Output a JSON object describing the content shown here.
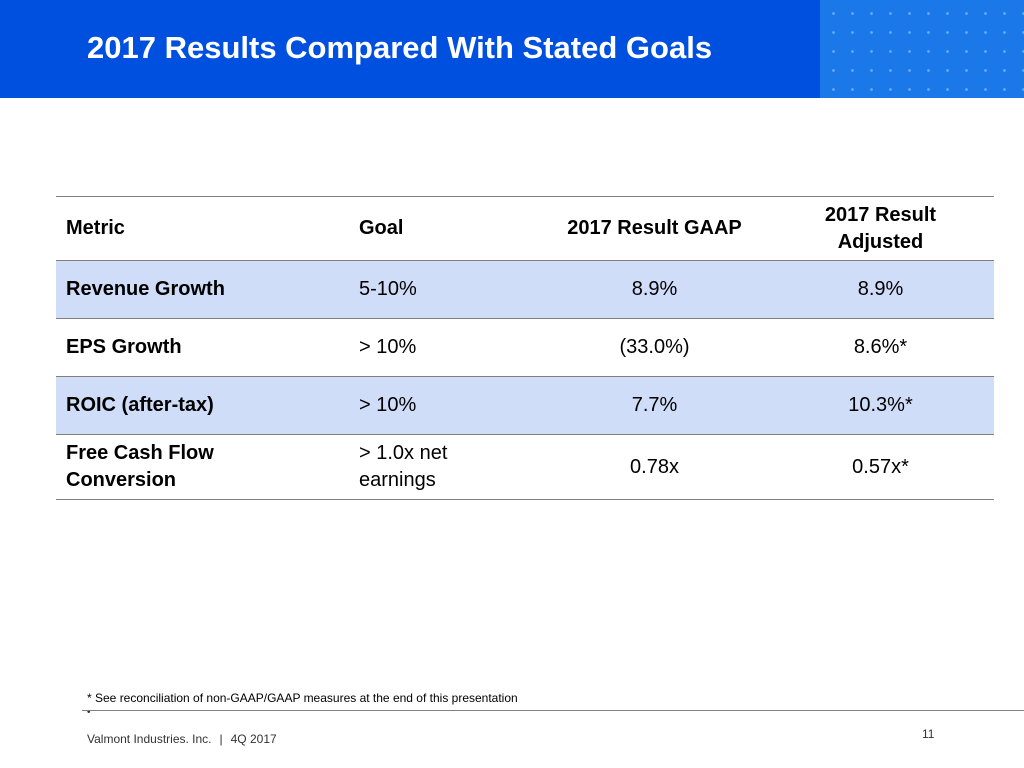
{
  "slide": {
    "title": "2017 Results Compared With Stated Goals"
  },
  "table": {
    "headers": {
      "metric": "Metric",
      "goal": "Goal",
      "gaap": "2017 Result GAAP",
      "adjusted_line1": "2017 Result",
      "adjusted_line2": "Adjusted"
    },
    "rows": [
      {
        "metric_line1": "Revenue Growth",
        "metric_line2": "",
        "goal_line1": "5-10%",
        "goal_line2": "",
        "gaap": "8.9%",
        "adjusted": "8.9%"
      },
      {
        "metric_line1": "EPS Growth",
        "metric_line2": "",
        "goal_line1": "> 10%",
        "goal_line2": "",
        "gaap": "(33.0%)",
        "adjusted": "8.6%*"
      },
      {
        "metric_line1": "ROIC (after-tax)",
        "metric_line2": "",
        "goal_line1": "> 10%",
        "goal_line2": "",
        "gaap": "7.7%",
        "adjusted": "10.3%*"
      },
      {
        "metric_line1": "Free Cash Flow",
        "metric_line2": "Conversion",
        "goal_line1": "> 1.0x net",
        "goal_line2": "earnings",
        "gaap": "0.78x",
        "adjusted": "0.57x*"
      }
    ]
  },
  "footnote": "* See reconciliation of non-GAAP/GAAP measures at the end of this presentation",
  "footer": {
    "bullet": "•",
    "company": "Valmont Industries. Inc.",
    "separator": "|",
    "period": "4Q 2017",
    "page_number": "11"
  },
  "colors": {
    "header_blue": "#0050e0",
    "dot_panel_blue": "#1a78e8",
    "row_shade": "#d0ddf8"
  }
}
